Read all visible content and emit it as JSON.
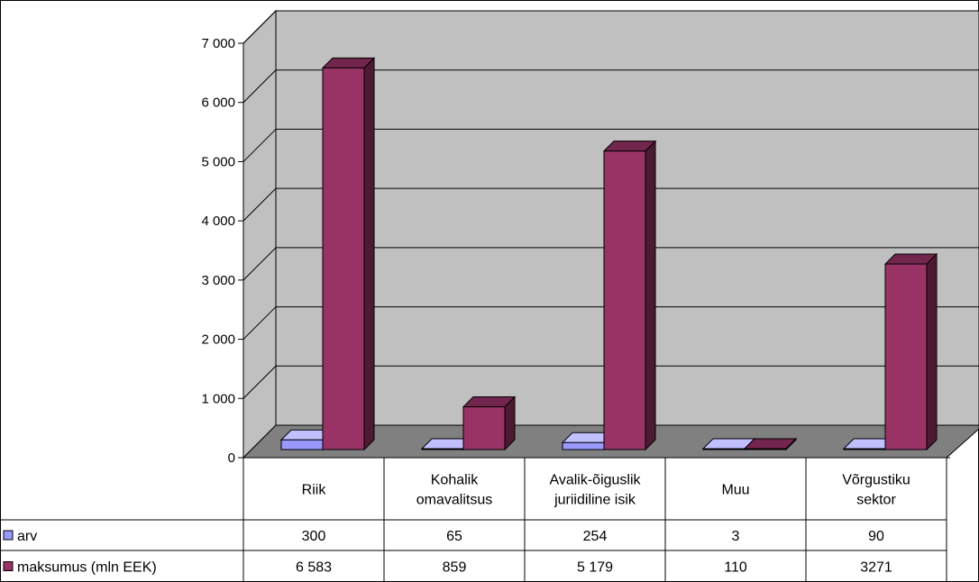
{
  "chart_data": {
    "type": "bar",
    "style": "3d-clustered-column-with-data-table",
    "categories": [
      [
        "Riik"
      ],
      [
        "Kohalik",
        "omavalitsus"
      ],
      [
        "Avalik-õiguslik",
        "juriidiline isik"
      ],
      [
        "Muu"
      ],
      [
        "Võrgustiku",
        "sektor"
      ]
    ],
    "series": [
      {
        "name": "arv",
        "values": [
          300,
          65,
          254,
          3,
          90
        ],
        "labels": [
          "300",
          "65",
          "254",
          "3",
          "90"
        ],
        "color": "#9999ff",
        "color_side": "#6666cc",
        "color_top": "#c0c0ff"
      },
      {
        "name": "maksumus (mln EEK)",
        "values": [
          6583,
          859,
          5179,
          110,
          3271
        ],
        "labels": [
          "6 583",
          "859",
          "5 179",
          "110",
          "3271"
        ],
        "color": "#993366",
        "color_side": "#4c1a33",
        "color_top": "#73264d"
      }
    ],
    "ylim": [
      0,
      7000
    ],
    "yticks": [
      "0",
      "1 000",
      "2 000",
      "3 000",
      "4 000",
      "5 000",
      "6 000",
      "7 000"
    ],
    "grid": true,
    "wall_color": "#c0c0c0",
    "floor_color": "#808080"
  }
}
